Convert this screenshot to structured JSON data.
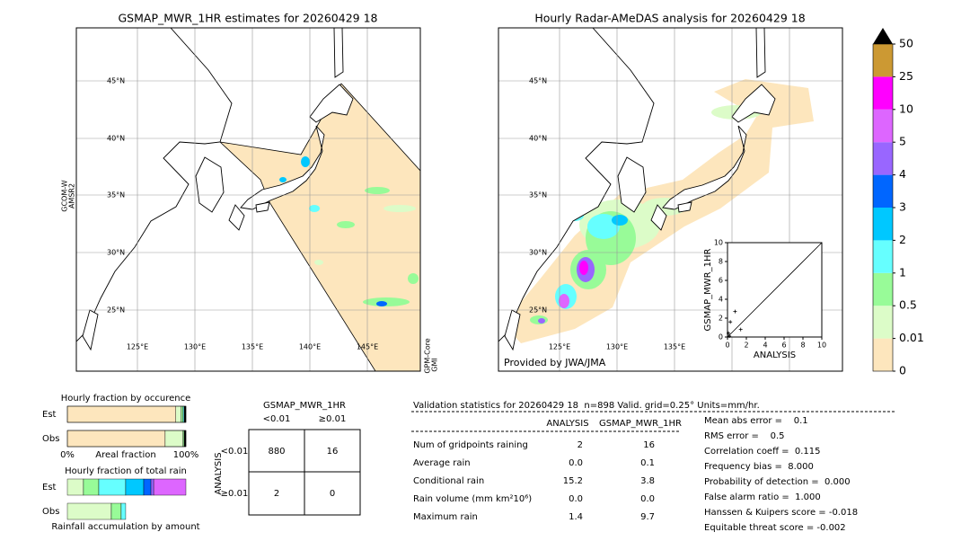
{
  "left_map": {
    "title": "GSMAP_MWR_1HR estimates for 20260429 18",
    "satellite_left": [
      "GCOM-W",
      "AMSR2"
    ],
    "satellite_right": [
      "GPM-Core",
      "GMI"
    ],
    "lat_labels": [
      "45°N",
      "40°N",
      "35°N",
      "30°N",
      "25°N"
    ],
    "lon_labels": [
      "125°E",
      "130°E",
      "135°E",
      "140°E",
      "145°E"
    ]
  },
  "right_map": {
    "title": "Hourly Radar-AMeDAS analysis for 20260429 18",
    "credit": "Provided by JWA/JMA",
    "lat_labels": [
      "45°N",
      "40°N",
      "35°N",
      "30°N",
      "25°N"
    ],
    "lon_labels": [
      "125°E",
      "130°E",
      "135°E"
    ]
  },
  "colorbar": {
    "ticks": [
      0,
      0.01,
      0.5,
      1,
      2,
      3,
      4,
      5,
      10,
      25,
      50
    ],
    "colors": [
      "#fde6bd",
      "#dcfcc8",
      "#98fb98",
      "#66ffff",
      "#00c8ff",
      "#0066ff",
      "#9966ff",
      "#dd66ff",
      "#ff00ff",
      "#cc9933"
    ]
  },
  "chart_data": [
    {
      "type": "scatter",
      "x_label": "ANALYSIS",
      "y_label": "GSMAP_MWR_1HR",
      "xlim": [
        0,
        10
      ],
      "ylim": [
        0,
        10
      ],
      "xticks": [
        0,
        2,
        4,
        6,
        8,
        10
      ],
      "yticks": [
        0,
        2,
        4,
        6,
        8,
        10
      ],
      "color": "#000000",
      "x": [
        0.0,
        0.1,
        0.3,
        0.8,
        1.4,
        0.2
      ],
      "values": [
        0.0,
        0.4,
        1.6,
        2.7,
        0.8,
        0.1
      ]
    },
    {
      "type": "stacked_bar",
      "title": "Hourly fraction by occurence",
      "categories": [
        "Est",
        "Obs"
      ],
      "x_label": "Areal fraction",
      "xlim": [
        0,
        100
      ],
      "xticks": [
        {
          "value": 0,
          "label": "0%"
        },
        {
          "value": 100,
          "label": "100%"
        }
      ],
      "series": [
        {
          "color": "#fde6bd",
          "values": [
            91.5,
            82.5
          ]
        },
        {
          "color": "#dcfcc8",
          "values": [
            4.5,
            15.0
          ]
        },
        {
          "color": "#98fb98",
          "values": [
            1.5,
            1.0
          ]
        },
        {
          "color": "#66ffff",
          "values": [
            1.0,
            0.0
          ]
        },
        {
          "color": "#000000",
          "values": [
            1.5,
            1.5
          ]
        }
      ]
    },
    {
      "type": "stacked_bar",
      "title": "Hourly fraction of total rain",
      "categories": [
        "Est",
        "Obs"
      ],
      "x_label": "Rainfall accumulation by amount",
      "xlim": [
        0,
        100
      ],
      "series": [
        {
          "color": "#dcfcc8",
          "values": [
            13.6,
            37.1
          ]
        },
        {
          "color": "#98fb98",
          "values": [
            12.9,
            8.3
          ]
        },
        {
          "color": "#66ffff",
          "values": [
            22.7,
            3.8
          ]
        },
        {
          "color": "#00c8ff",
          "values": [
            15.2,
            0.0
          ]
        },
        {
          "color": "#0066ff",
          "values": [
            6.1,
            0.0
          ]
        },
        {
          "color": "#9966ff",
          "values": [
            2.3,
            0.0
          ]
        },
        {
          "color": "#dd66ff",
          "values": [
            27.2,
            0.0
          ]
        }
      ]
    }
  ],
  "contingency": {
    "title": "GSMAP_MWR_1HR",
    "col_headers": [
      "<0.01",
      "≥0.01"
    ],
    "row_label": "ANALYSIS",
    "row_headers": [
      "<0.01",
      "≥0.01"
    ],
    "cells": [
      [
        "880",
        "16"
      ],
      [
        "2",
        "0"
      ]
    ]
  },
  "stats": {
    "title": "Validation statistics for 20260429 18  n=898 Valid. grid=0.25° Units=mm/hr.",
    "columns": [
      "ANALYSIS",
      "GSMAP_MWR_1HR"
    ],
    "rows": [
      [
        "Num of gridpoints raining",
        "2",
        "16"
      ],
      [
        "Average rain",
        "0.0",
        "0.1"
      ],
      [
        "Conditional rain",
        "15.2",
        "3.8"
      ],
      [
        "Rain volume (mm km²10⁶)",
        "0.0",
        "0.0"
      ],
      [
        "Maximum rain",
        "1.4",
        "9.7"
      ]
    ],
    "scores": [
      "Mean abs error =    0.1",
      "RMS error =    0.5",
      "Correlation coeff =  0.115",
      "Frequency bias =  8.000",
      "Probability of detection =  0.000",
      "False alarm ratio =  1.000",
      "Hanssen & Kuipers score = -0.018",
      "Equitable threat score = -0.002"
    ]
  }
}
